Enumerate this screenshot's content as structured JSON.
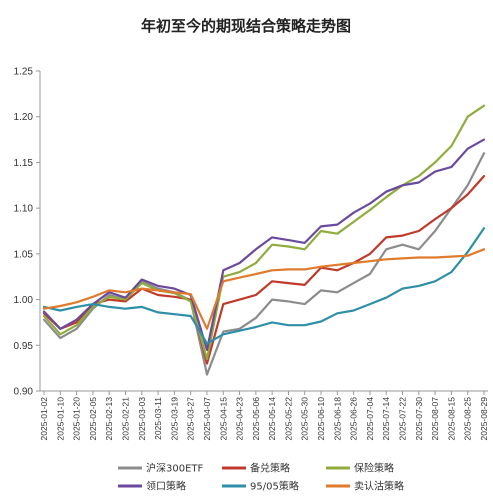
{
  "chart_data": {
    "type": "line",
    "title": "年初至今的期现结合策略走势图",
    "ylim": [
      0.9,
      1.25
    ],
    "yticks": [
      "0.90",
      "0.95",
      "1.00",
      "1.05",
      "1.10",
      "1.15",
      "1.20",
      "1.25"
    ],
    "grid": false,
    "legend_position": "bottom",
    "x": [
      "2025-01-02",
      "2025-01-10",
      "2025-01-20",
      "2025-02-05",
      "2025-02-13",
      "2025-02-21",
      "2025-03-03",
      "2025-03-11",
      "2025-03-19",
      "2025-03-27",
      "2025-04-07",
      "2025-04-15",
      "2025-04-23",
      "2025-05-06",
      "2025-05-14",
      "2025-05-22",
      "2025-05-30",
      "2025-06-10",
      "2025-06-18",
      "2025-06-26",
      "2025-07-04",
      "2025-07-14",
      "2025-07-22",
      "2025-07-30",
      "2025-08-07",
      "2025-08-15",
      "2025-08-25",
      "2025-08-29"
    ],
    "series": [
      {
        "name": "沪深300ETF",
        "color": "#8c8c8c",
        "values": [
          0.978,
          0.958,
          0.968,
          0.99,
          1.005,
          1.0,
          1.02,
          1.012,
          1.008,
          0.999,
          0.918,
          0.965,
          0.968,
          0.98,
          1.0,
          0.998,
          0.995,
          1.01,
          1.008,
          1.018,
          1.028,
          1.055,
          1.06,
          1.055,
          1.075,
          1.1,
          1.125,
          1.16
        ]
      },
      {
        "name": "备兑策略",
        "color": "#c0392b",
        "values": [
          0.985,
          0.968,
          0.975,
          0.995,
          1.0,
          0.998,
          1.012,
          1.005,
          1.003,
          1.0,
          0.93,
          0.995,
          1.0,
          1.005,
          1.02,
          1.018,
          1.016,
          1.035,
          1.032,
          1.04,
          1.05,
          1.068,
          1.07,
          1.075,
          1.088,
          1.1,
          1.115,
          1.135
        ]
      },
      {
        "name": "保险策略",
        "color": "#8fac3c",
        "values": [
          0.982,
          0.962,
          0.972,
          0.992,
          1.003,
          1.0,
          1.018,
          1.01,
          1.007,
          0.998,
          0.935,
          1.025,
          1.03,
          1.04,
          1.06,
          1.058,
          1.055,
          1.075,
          1.072,
          1.085,
          1.098,
          1.112,
          1.125,
          1.135,
          1.15,
          1.168,
          1.2,
          1.212
        ]
      },
      {
        "name": "领口策略",
        "color": "#6b4a9e",
        "values": [
          0.987,
          0.968,
          0.978,
          0.995,
          1.008,
          1.002,
          1.022,
          1.015,
          1.012,
          1.005,
          0.945,
          1.032,
          1.04,
          1.055,
          1.068,
          1.065,
          1.062,
          1.08,
          1.082,
          1.095,
          1.105,
          1.118,
          1.125,
          1.128,
          1.14,
          1.145,
          1.165,
          1.175
        ]
      },
      {
        "name": "95/05策略",
        "color": "#2e8fa8",
        "values": [
          0.992,
          0.988,
          0.992,
          0.995,
          0.992,
          0.99,
          0.992,
          0.986,
          0.984,
          0.982,
          0.952,
          0.962,
          0.966,
          0.97,
          0.975,
          0.972,
          0.972,
          0.976,
          0.985,
          0.988,
          0.995,
          1.002,
          1.012,
          1.015,
          1.02,
          1.03,
          1.052,
          1.078
        ]
      },
      {
        "name": "卖认沽策略",
        "color": "#e07a2c",
        "values": [
          0.99,
          0.993,
          0.997,
          1.003,
          1.01,
          1.008,
          1.012,
          1.01,
          1.008,
          1.006,
          0.968,
          1.02,
          1.024,
          1.028,
          1.032,
          1.033,
          1.033,
          1.036,
          1.038,
          1.04,
          1.042,
          1.044,
          1.045,
          1.046,
          1.046,
          1.047,
          1.048,
          1.055
        ]
      }
    ]
  }
}
